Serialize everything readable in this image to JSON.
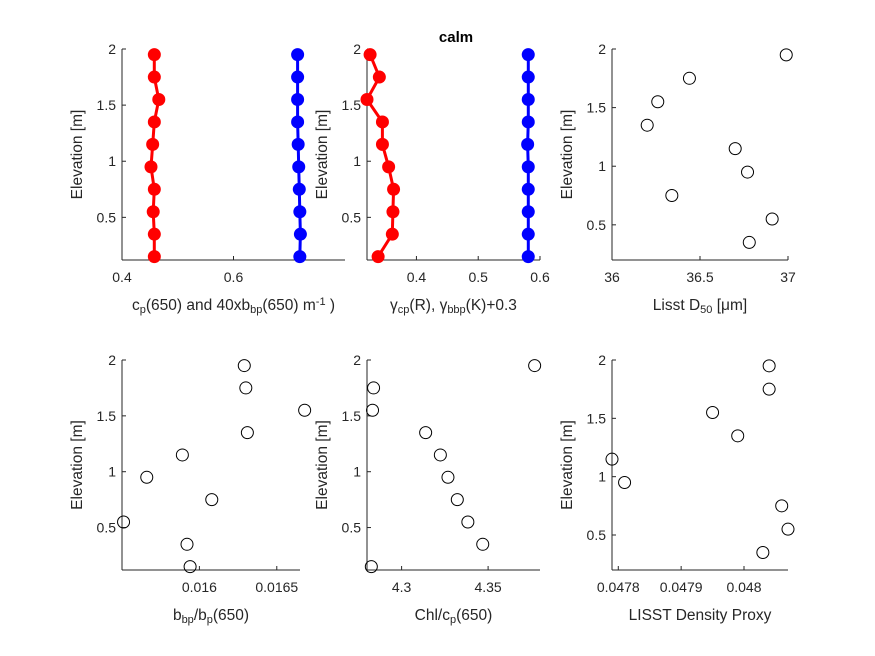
{
  "figure_title": "calm",
  "chart_data": [
    {
      "type": "line",
      "ylabel": "Elevation [m]",
      "xlabel_parts": [
        [
          "c",
          ""
        ],
        [
          "p",
          "sub"
        ],
        [
          "(650) and 40xb",
          ""
        ],
        [
          "bp",
          "sub"
        ],
        [
          "(650) m",
          ""
        ],
        [
          "-1",
          "sup"
        ],
        [
          " )",
          ""
        ]
      ],
      "xlim": [
        0.4,
        0.8
      ],
      "ylim": [
        0.12,
        2.0
      ],
      "xticks": [
        0.4,
        0.6
      ],
      "xticklabels": [
        "0.4",
        "0.6"
      ],
      "yticks": [
        0.5,
        1,
        1.5,
        2
      ],
      "yticklabels": [
        "0.5",
        "1",
        "1.5",
        "2"
      ],
      "series": [
        {
          "color": "#ff0000",
          "marker": "filled",
          "connect": true,
          "x": [
            0.458,
            0.458,
            0.466,
            0.458,
            0.455,
            0.452,
            0.458,
            0.456,
            0.458,
            0.458
          ],
          "y": [
            1.95,
            1.75,
            1.55,
            1.35,
            1.15,
            0.95,
            0.75,
            0.55,
            0.35,
            0.15
          ]
        },
        {
          "color": "#0000ff",
          "marker": "filled",
          "connect": true,
          "x": [
            0.715,
            0.715,
            0.715,
            0.715,
            0.716,
            0.717,
            0.718,
            0.719,
            0.72,
            0.719
          ],
          "y": [
            1.95,
            1.75,
            1.55,
            1.35,
            1.15,
            0.95,
            0.75,
            0.55,
            0.35,
            0.15
          ]
        }
      ]
    },
    {
      "type": "line",
      "ylabel": "Elevation [m]",
      "xlabel_parts": [
        [
          "γ",
          ""
        ],
        [
          "cp",
          "sub"
        ],
        [
          "(R), ",
          ""
        ],
        [
          "γ",
          ""
        ],
        [
          "bbp",
          "sub"
        ],
        [
          "(K)+0.3",
          ""
        ]
      ],
      "xlim": [
        0.32,
        0.6
      ],
      "ylim": [
        0.12,
        2.0
      ],
      "xticks": [
        0.4,
        0.5,
        0.6
      ],
      "xticklabels": [
        "0.4",
        "0.5",
        "0.6"
      ],
      "yticks": [
        0.5,
        1,
        1.5,
        2
      ],
      "yticklabels": [
        "0.5",
        "1",
        "1.5",
        "2"
      ],
      "series": [
        {
          "color": "#ff0000",
          "marker": "filled",
          "connect": true,
          "x": [
            0.325,
            0.34,
            0.32,
            0.345,
            0.345,
            0.355,
            0.363,
            0.362,
            0.361,
            0.338
          ],
          "y": [
            1.95,
            1.75,
            1.55,
            1.35,
            1.15,
            0.95,
            0.75,
            0.55,
            0.35,
            0.15
          ]
        },
        {
          "color": "#0000ff",
          "marker": "filled",
          "connect": true,
          "x": [
            0.581,
            0.581,
            0.581,
            0.581,
            0.58,
            0.581,
            0.581,
            0.581,
            0.581,
            0.581
          ],
          "y": [
            1.95,
            1.75,
            1.55,
            1.35,
            1.15,
            0.95,
            0.75,
            0.55,
            0.35,
            0.15
          ]
        }
      ]
    },
    {
      "type": "scatter",
      "ylabel": "Elevation [m]",
      "xlabel_parts": [
        [
          "Lisst D",
          ""
        ],
        [
          "50",
          "sub"
        ],
        [
          " [",
          ""
        ],
        [
          "μ",
          ""
        ],
        [
          "m]",
          ""
        ]
      ],
      "xlim": [
        36.0,
        37.0
      ],
      "ylim": [
        0.2,
        2.0
      ],
      "xticks": [
        36,
        36.5,
        37
      ],
      "xticklabels": [
        "36",
        "36.5",
        "37"
      ],
      "yticks": [
        0.5,
        1,
        1.5,
        2
      ],
      "yticklabels": [
        "0.5",
        "1",
        "1.5",
        "2"
      ],
      "series": [
        {
          "color": "#000000",
          "marker": "open",
          "connect": false,
          "x": [
            36.99,
            36.44,
            36.26,
            36.2,
            36.7,
            36.77,
            36.34,
            36.91,
            36.78
          ],
          "y": [
            1.95,
            1.75,
            1.55,
            1.35,
            1.15,
            0.95,
            0.75,
            0.55,
            0.35
          ]
        }
      ]
    },
    {
      "type": "scatter",
      "ylabel": "Elevation [m]",
      "xlabel_parts": [
        [
          "b",
          ""
        ],
        [
          "bp",
          "sub"
        ],
        [
          "/b",
          ""
        ],
        [
          "p",
          "sub"
        ],
        [
          "(650)",
          ""
        ]
      ],
      "xlim": [
        0.0155,
        0.01665
      ],
      "ylim": [
        0.12,
        2.0
      ],
      "xticks": [
        0.016,
        0.0165
      ],
      "xticklabels": [
        "0.016",
        "0.0165"
      ],
      "yticks": [
        0.5,
        1,
        1.5,
        2
      ],
      "yticklabels": [
        "0.5",
        "1",
        "1.5",
        "2"
      ],
      "series": [
        {
          "color": "#000000",
          "marker": "open",
          "connect": false,
          "x": [
            0.01629,
            0.0163,
            0.01668,
            0.01631,
            0.01589,
            0.01566,
            0.01608,
            0.01551,
            0.01592,
            0.01594
          ],
          "y": [
            1.95,
            1.75,
            1.55,
            1.35,
            1.15,
            0.95,
            0.75,
            0.55,
            0.35,
            0.15
          ]
        }
      ]
    },
    {
      "type": "scatter",
      "ylabel": "Elevation [m]",
      "xlabel_parts": [
        [
          "Chl/c",
          ""
        ],
        [
          "p",
          "sub"
        ],
        [
          "(650)",
          ""
        ]
      ],
      "xlim": [
        4.28,
        4.38
      ],
      "ylim": [
        0.12,
        2.0
      ],
      "xticks": [
        4.3,
        4.35
      ],
      "xticklabels": [
        "4.3",
        "4.35"
      ],
      "yticks": [
        0.5,
        1,
        1.5,
        2
      ],
      "yticklabels": [
        "0.5",
        "1",
        "1.5",
        "2"
      ],
      "series": [
        {
          "color": "#000000",
          "marker": "open",
          "connect": false,
          "x": [
            4.3769,
            4.2838,
            4.2832,
            4.3139,
            4.3224,
            4.3268,
            4.3322,
            4.3383,
            4.3469,
            4.2825
          ],
          "y": [
            1.95,
            1.75,
            1.55,
            1.35,
            1.15,
            0.95,
            0.75,
            0.55,
            0.35,
            0.15
          ]
        }
      ]
    },
    {
      "type": "scatter",
      "ylabel": "Elevation [m]",
      "xlabel": "LISST Density Proxy",
      "xlim": [
        0.04779,
        0.04807
      ],
      "ylim": [
        0.2,
        2.0
      ],
      "xticks": [
        0.0478,
        0.0479,
        0.048
      ],
      "xticklabels": [
        "0.0478",
        "0.0479",
        "0.048"
      ],
      "yticks": [
        0.5,
        1,
        1.5,
        2
      ],
      "yticklabels": [
        "0.5",
        "1",
        "1.5",
        "2"
      ],
      "series": [
        {
          "color": "#000000",
          "marker": "open",
          "connect": false,
          "x": [
            0.04804,
            0.04804,
            0.04795,
            0.04799,
            0.04779,
            0.04781,
            0.04806,
            0.04807,
            0.04803
          ],
          "y": [
            1.95,
            1.75,
            1.55,
            1.35,
            1.15,
            0.95,
            0.75,
            0.55,
            0.35
          ]
        }
      ]
    }
  ]
}
